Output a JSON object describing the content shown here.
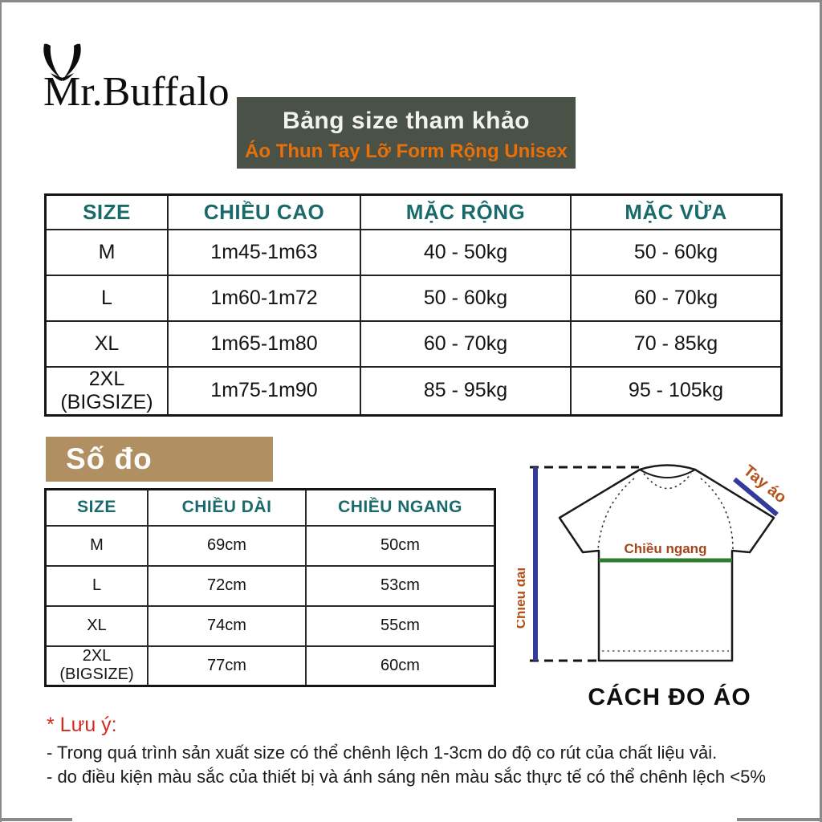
{
  "brand": {
    "name": "Mr.Buffalo"
  },
  "header": {
    "title": "Bảng size tham khảo",
    "subtitle": "Áo Thun Tay Lỡ Form Rộng Unisex"
  },
  "size_table": {
    "headers": [
      "SIZE",
      "CHIỀU CAO",
      "MẶC RỘNG",
      "MẶC VỪA"
    ],
    "rows": [
      [
        "M",
        "1m45-1m63",
        "40 - 50kg",
        "50 - 60kg"
      ],
      [
        "L",
        "1m60-1m72",
        "50 - 60kg",
        "60 - 70kg"
      ],
      [
        "XL",
        "1m65-1m80",
        "60 - 70kg",
        "70 - 85kg"
      ],
      [
        "2XL (BIGSIZE)",
        "1m75-1m90",
        "85 - 95kg",
        "95 - 105kg"
      ]
    ]
  },
  "measure_section": {
    "label": "Số đo"
  },
  "measure_table": {
    "headers": [
      "SIZE",
      "CHIỀU DÀI",
      "CHIỀU NGANG"
    ],
    "rows": [
      [
        "M",
        "69cm",
        "50cm"
      ],
      [
        "L",
        "72cm",
        "53cm"
      ],
      [
        "XL",
        "74cm",
        "55cm"
      ],
      [
        "2XL (BIGSIZE)",
        "77cm",
        "60cm"
      ]
    ]
  },
  "diagram": {
    "labels": {
      "sleeve": "Tay áo",
      "width": "Chiều ngang",
      "length": "Chiều dài"
    },
    "caption": "CÁCH ĐO ÁO"
  },
  "notes": {
    "title": "* Lưu ý:",
    "lines": [
      "- Trong quá trình sản xuất size có thể chênh lệch 1-3cm do độ co rút của chất liệu vải.",
      "- do điều kiện màu sắc của thiết bị và ánh sáng nên màu sắc thực tế có thể chênh lệch <5%"
    ]
  },
  "colors": {
    "teal_header": "#1a6a6c",
    "banner_bg": "#4a5147",
    "banner_title": "#f3f3ee",
    "accent_orange": "#e8700a",
    "tan_box": "#b08f62",
    "note_red": "#d42a1e",
    "line_blue": "#333a99",
    "line_green": "#2e7d32",
    "label_brown": "#b5521c",
    "label_dark_red": "#a6441c",
    "frame_gray": "#8a8a8a",
    "ink": "#141414"
  }
}
